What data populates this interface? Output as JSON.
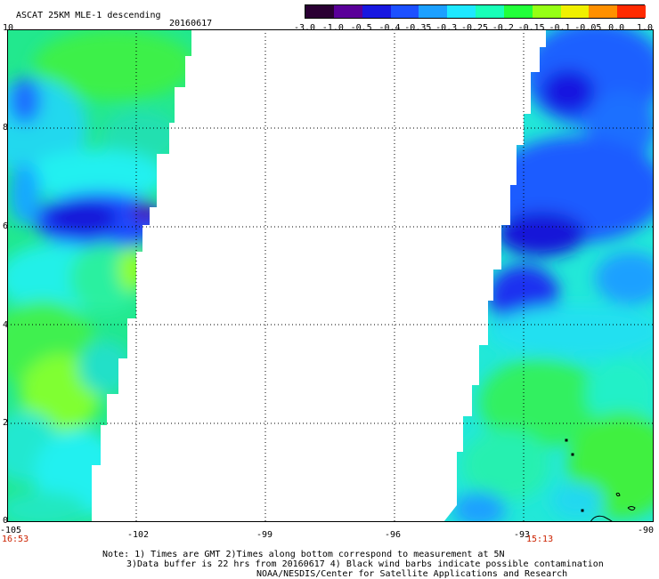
{
  "header": {
    "title": "ASCAT 25KM MLE-1 descending",
    "date": "20160617"
  },
  "colorbar": {
    "labels": [
      "-3.0",
      "-1.0",
      "-0.5",
      "-0.4",
      "-0.35",
      "-0.3",
      "-0.25",
      "-0.2",
      "-0.15",
      "-0.1",
      "-0.05",
      "0.0",
      "1.0"
    ],
    "colors": [
      "#2a0033",
      "#5a0099",
      "#1818e0",
      "#1c50ff",
      "#1ca0ff",
      "#1ee8ff",
      "#18ffb8",
      "#22ff3a",
      "#96ff14",
      "#f0f000",
      "#ff9000",
      "#ff2a00"
    ]
  },
  "axes": {
    "y_ticks": [
      "10",
      "8",
      "6",
      "4",
      "2",
      "0"
    ],
    "x_ticks": [
      "-105",
      "-102",
      "-99",
      "-96",
      "-93",
      "-90"
    ],
    "x_time_labels": [
      {
        "text": "16:53",
        "at": "-105"
      },
      {
        "text": "15:13",
        "at": "-93"
      }
    ]
  },
  "notes": {
    "line1": "Note: 1) Times are GMT 2)Times along bottom correspond to measurement at 5N",
    "line2": "3)Data buffer is 22 hrs from 20160617 4) Black wind barbs indicate possible contamination",
    "line3": "NOAA/NESDIS/Center for Satellite Applications and Research"
  }
}
